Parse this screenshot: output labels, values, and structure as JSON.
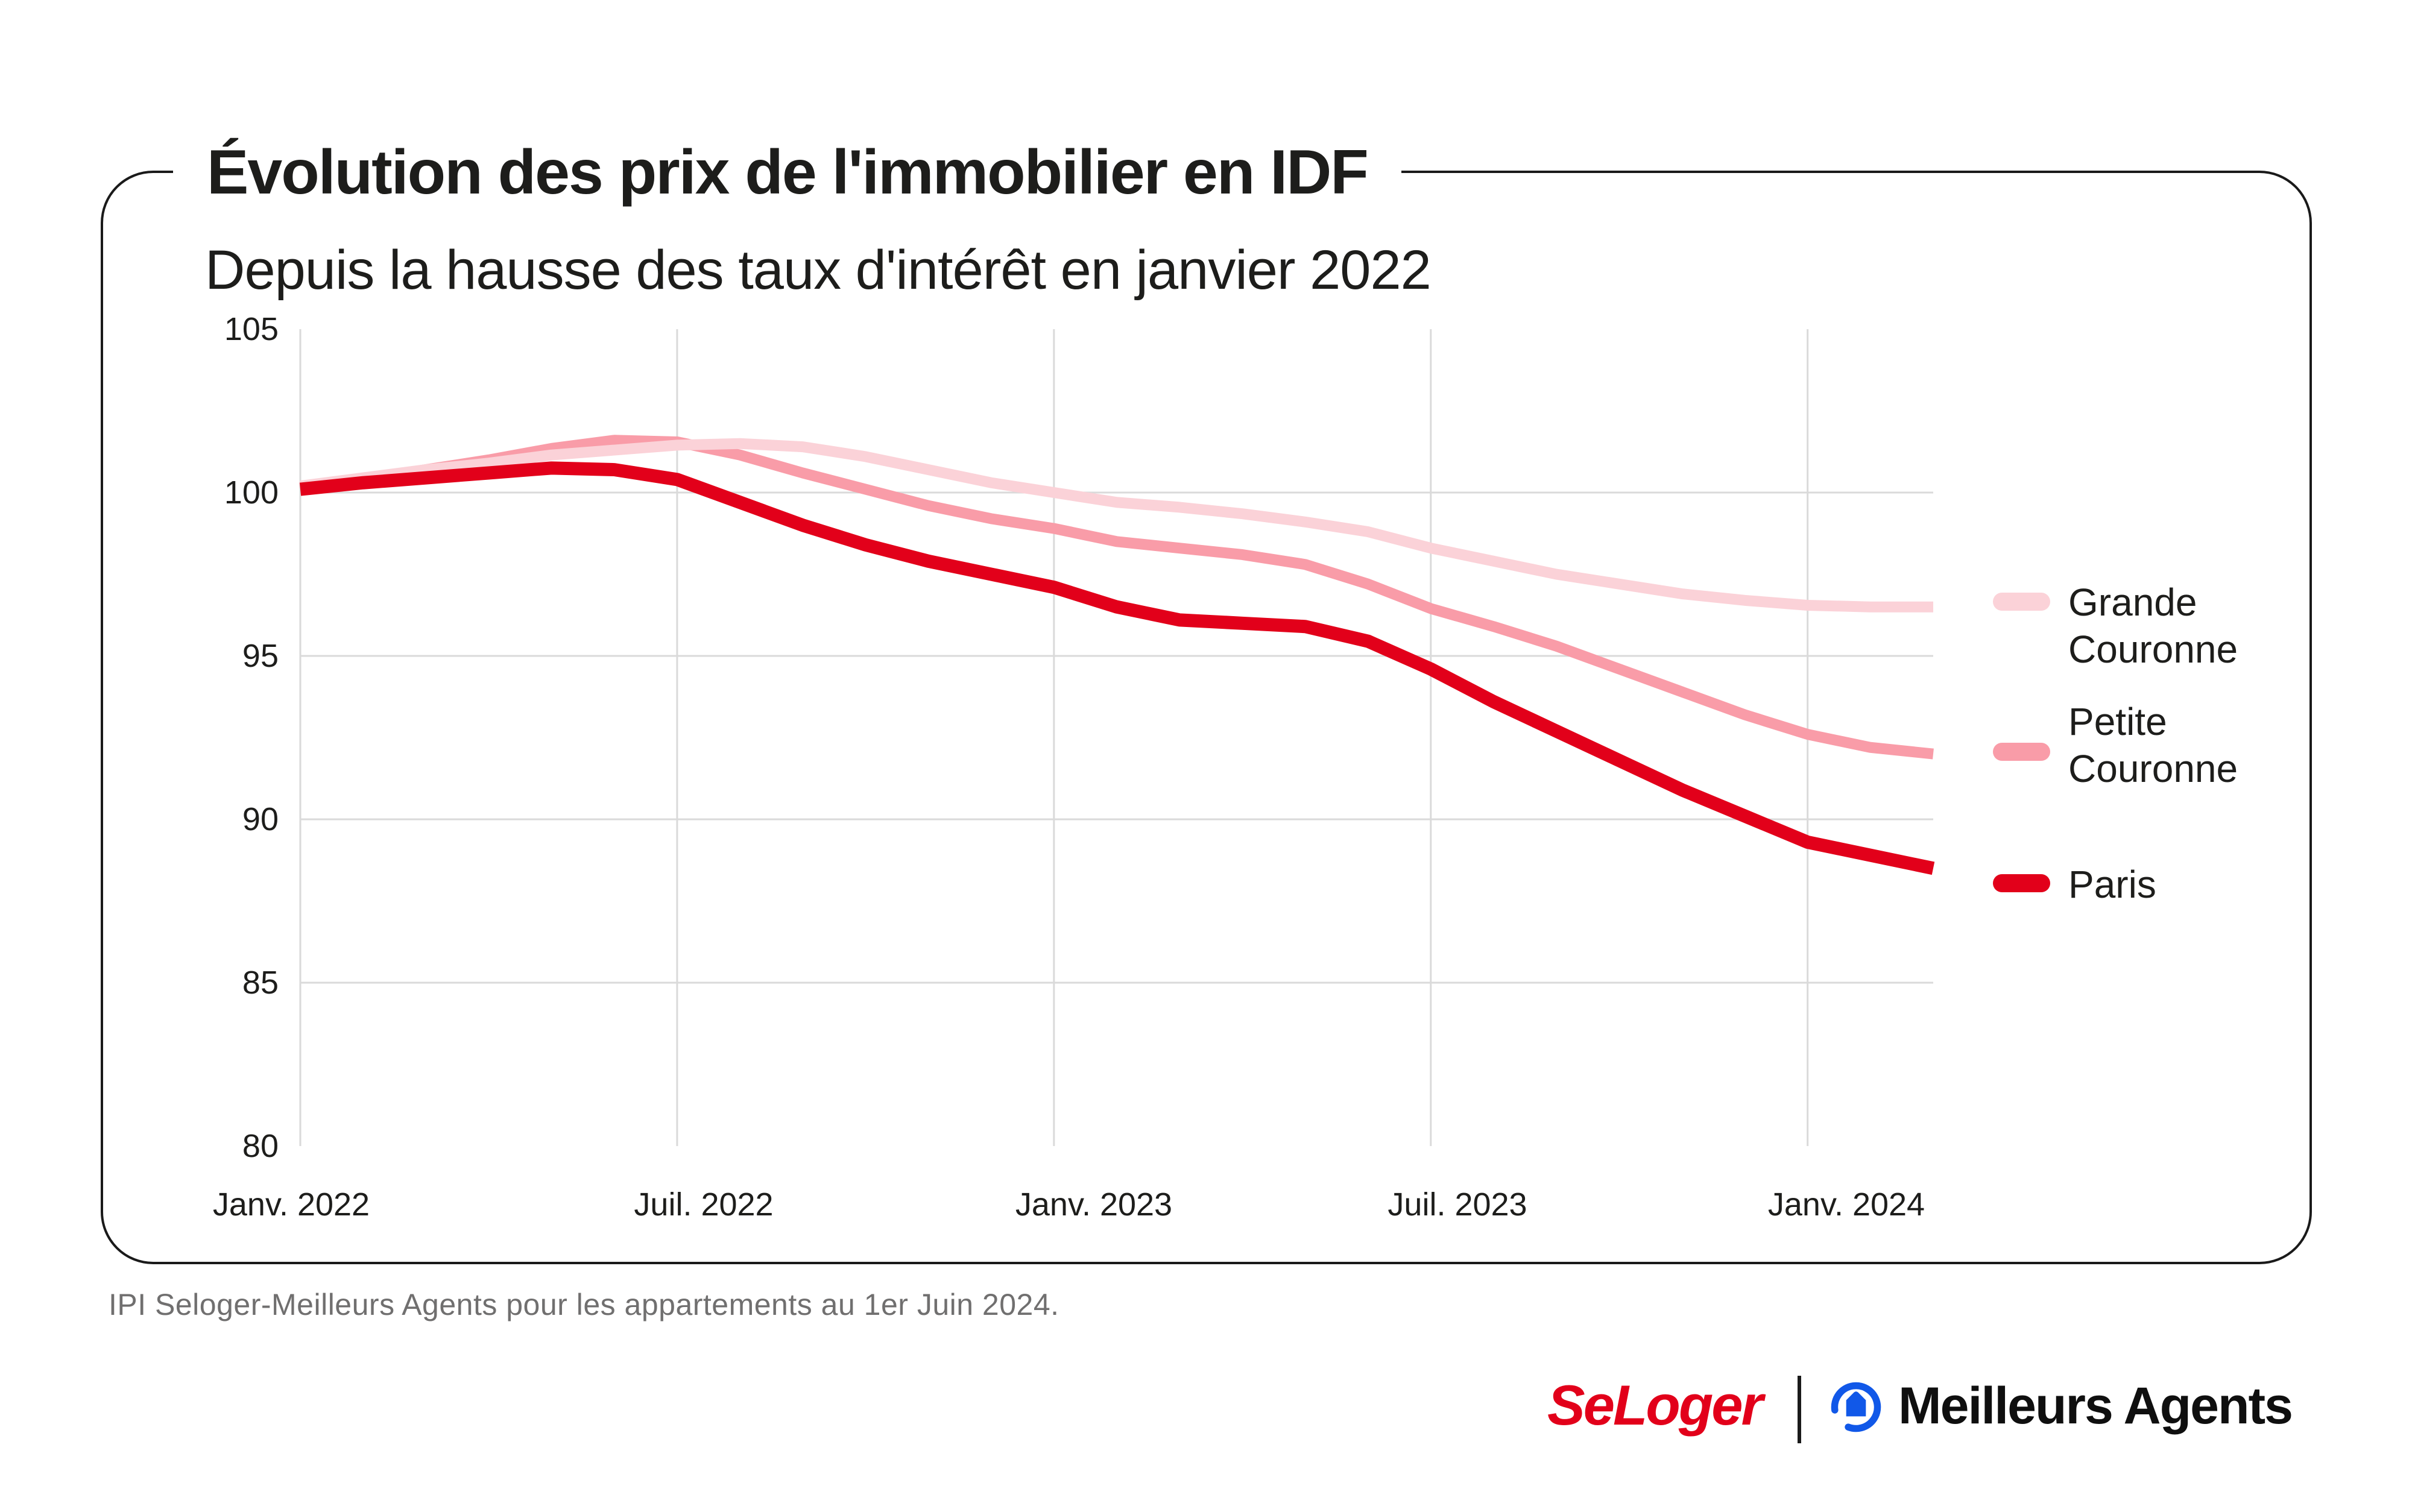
{
  "header": {
    "title": "Évolution des prix de l'immobilier en IDF",
    "subtitle": "Depuis la hausse des taux d'intérêt en janvier 2022"
  },
  "chart_data": {
    "type": "line",
    "title": "Évolution des prix de l'immobilier en IDF",
    "subtitle": "Depuis la hausse des taux d'intérêt en janvier 2022",
    "x": [
      "2022-01",
      "2022-02",
      "2022-03",
      "2022-04",
      "2022-05",
      "2022-06",
      "2022-07",
      "2022-08",
      "2022-09",
      "2022-10",
      "2022-11",
      "2022-12",
      "2023-01",
      "2023-02",
      "2023-03",
      "2023-04",
      "2023-05",
      "2023-06",
      "2023-07",
      "2023-08",
      "2023-09",
      "2023-10",
      "2023-11",
      "2023-12",
      "2024-01",
      "2024-02",
      "2024-03"
    ],
    "x_tick_labels": [
      "Janv. 2022",
      "Juil. 2022",
      "Janv. 2023",
      "Juil. 2023",
      "Janv. 2024"
    ],
    "x_tick_month_indices": [
      0,
      6,
      12,
      18,
      24
    ],
    "y_ticks": [
      105,
      100,
      95,
      90,
      85,
      80
    ],
    "ylim": [
      80,
      105
    ],
    "index_base": 100,
    "grid": {
      "horizontal_at": [
        100,
        95,
        90,
        85
      ],
      "vertical_at_ticks": true
    },
    "legend_position": "right",
    "series": [
      {
        "name": "Grande Couronne",
        "color": "#FBD2D8",
        "values": [
          100.2,
          100.45,
          100.7,
          100.9,
          101.15,
          101.3,
          101.45,
          101.5,
          101.4,
          101.1,
          100.7,
          100.3,
          100.0,
          99.7,
          99.55,
          99.35,
          99.1,
          98.8,
          98.3,
          97.9,
          97.5,
          97.2,
          96.9,
          96.7,
          96.55,
          96.5,
          96.5
        ]
      },
      {
        "name": "Petite Couronne",
        "color": "#F99CA8",
        "values": [
          100.2,
          100.4,
          100.7,
          101.0,
          101.35,
          101.6,
          101.55,
          101.15,
          100.6,
          100.1,
          99.6,
          99.2,
          98.9,
          98.5,
          98.3,
          98.1,
          97.8,
          97.2,
          96.45,
          95.9,
          95.3,
          94.6,
          93.9,
          93.2,
          92.6,
          92.2,
          92.0
        ]
      },
      {
        "name": "Paris",
        "color": "#E2001A",
        "values": [
          100.1,
          100.3,
          100.45,
          100.6,
          100.75,
          100.7,
          100.4,
          99.7,
          99.0,
          98.4,
          97.9,
          97.5,
          97.1,
          96.5,
          96.1,
          96.0,
          95.9,
          95.45,
          94.6,
          93.6,
          92.7,
          91.8,
          90.9,
          90.1,
          89.3,
          88.9,
          88.5
        ]
      }
    ]
  },
  "legend": {
    "items": [
      {
        "line1": "Grande",
        "line2": "Couronne",
        "color": "#FBD2D8"
      },
      {
        "line1": "Petite",
        "line2": "Couronne",
        "color": "#F99CA8"
      },
      {
        "line1": "Paris",
        "line2": "",
        "color": "#E2001A"
      }
    ]
  },
  "footer": {
    "source": "IPI Seloger-Meilleurs Agents pour les appartements au 1er Juin 2024."
  },
  "branding": {
    "seloger_label": "SeLoger",
    "meilleurs_agents_label": "Meilleurs Agents",
    "seloger_color": "#E2001A",
    "meilleurs_agents_blue": "#1158E8"
  },
  "colors": {
    "frame": "#1A1A1A",
    "gridline": "#DADADA",
    "text": "#1D1D1B",
    "footer_text": "#706F6F"
  }
}
